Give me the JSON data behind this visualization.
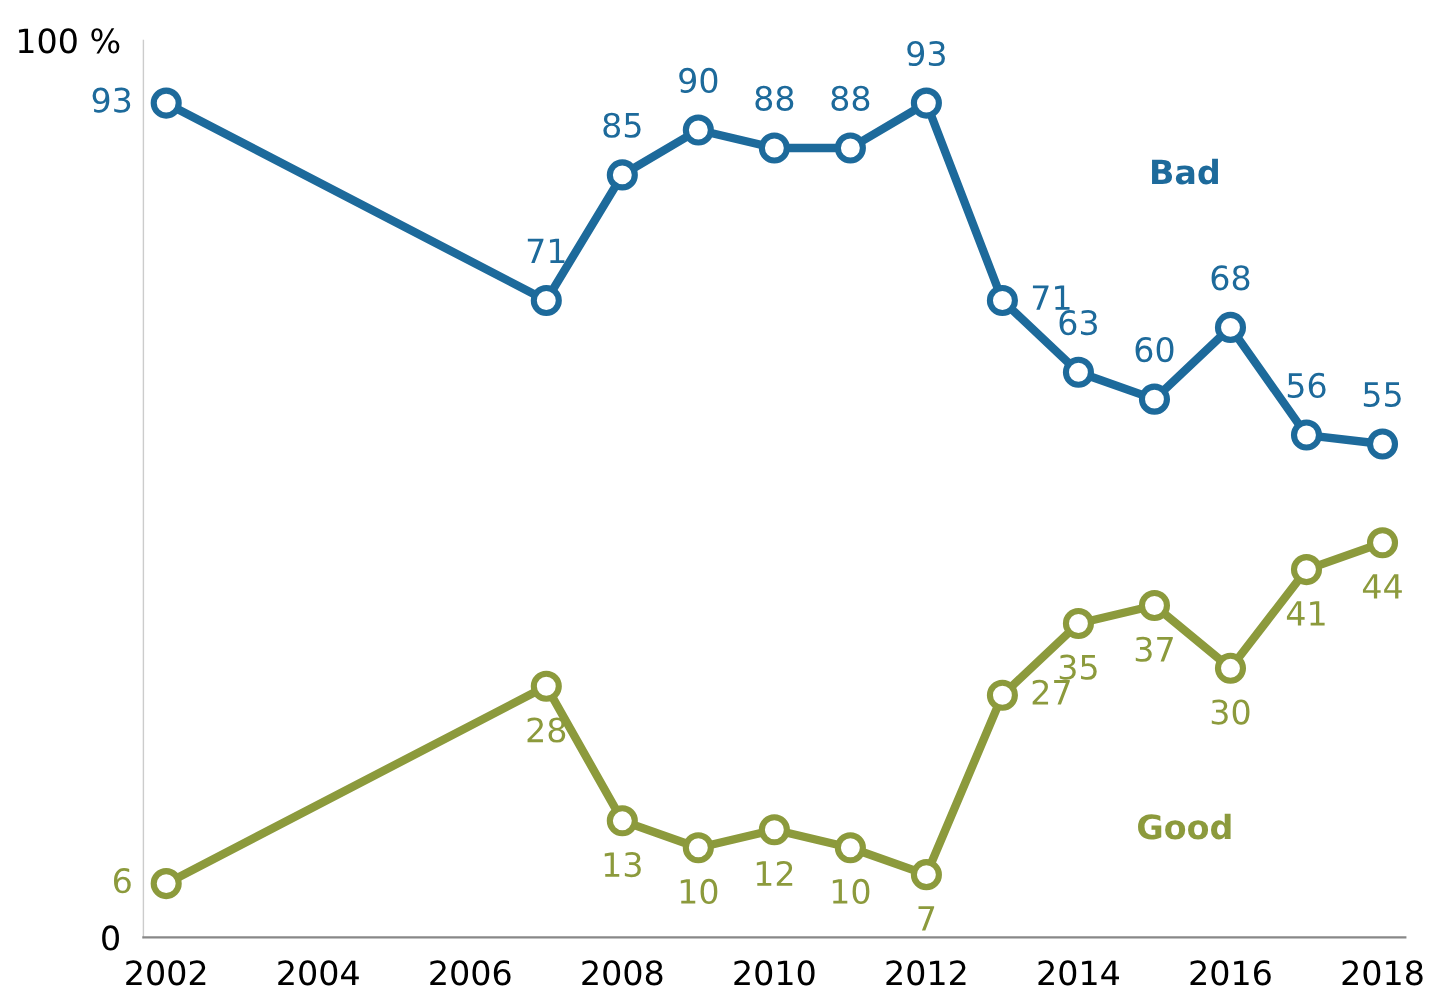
{
  "chart_data": {
    "type": "line",
    "x": [
      2002,
      2007,
      2008,
      2009,
      2010,
      2011,
      2012,
      2013,
      2014,
      2015,
      2016,
      2017,
      2018
    ],
    "series": [
      {
        "name": "Bad",
        "color": "#1d6a9b",
        "values": [
          93,
          71,
          85,
          90,
          88,
          88,
          93,
          71,
          63,
          60,
          68,
          56,
          55
        ]
      },
      {
        "name": "Good",
        "color": "#8c9a3c",
        "values": [
          6,
          28,
          13,
          10,
          12,
          10,
          7,
          27,
          35,
          37,
          30,
          41,
          44
        ]
      }
    ],
    "xlim": [
      2001.7,
      2018.3
    ],
    "xticks": [
      2002,
      2004,
      2006,
      2008,
      2010,
      2012,
      2014,
      2016,
      2018
    ],
    "ylim": [
      0,
      100
    ],
    "yticks": [
      0,
      {
        "value": 100,
        "label": "100 %"
      }
    ],
    "marker": "circle",
    "line_style": "solid",
    "data_labels": true,
    "legend": false,
    "grid": false
  }
}
